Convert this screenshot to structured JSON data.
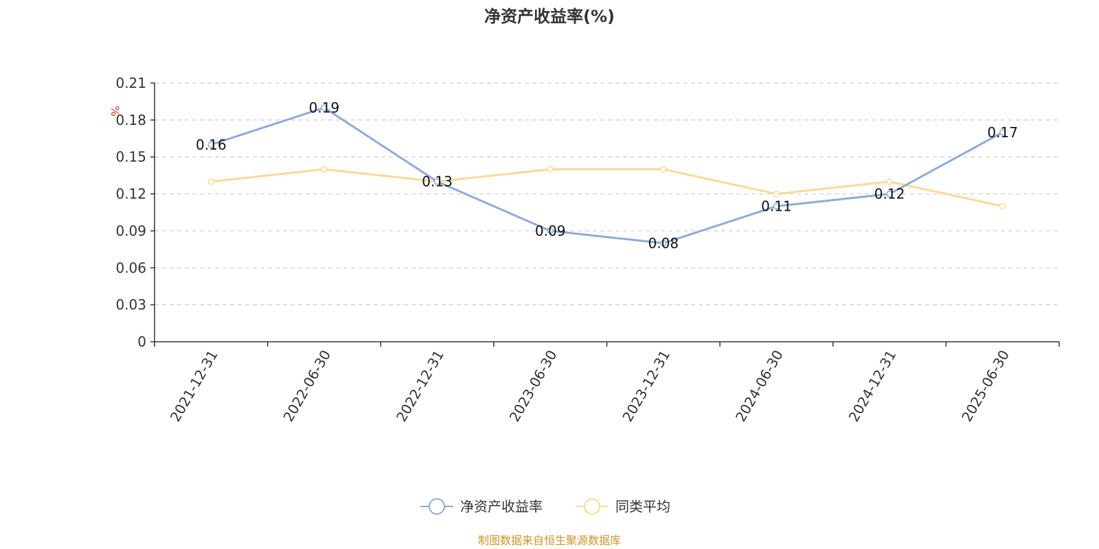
{
  "chart_data": {
    "type": "line",
    "title": "净资产收益率(%)",
    "ylabel": "%",
    "categories": [
      "2021-12-31",
      "2022-06-30",
      "2022-12-31",
      "2023-06-30",
      "2023-12-31",
      "2024-06-30",
      "2024-12-31",
      "2025-06-30"
    ],
    "y_ticks": [
      "0",
      "0.03",
      "0.06",
      "0.09",
      "0.12",
      "0.15",
      "0.18",
      "0.21"
    ],
    "ylim": [
      0,
      0.21
    ],
    "grid": true,
    "legend_position": "bottom-center",
    "series": [
      {
        "name": "净资产收益率",
        "color": "#8eaad8",
        "values": [
          0.16,
          0.19,
          0.13,
          0.09,
          0.08,
          0.11,
          0.12,
          0.17
        ],
        "labels": [
          "0.16",
          "0.19",
          "0.13",
          "0.09",
          "0.08",
          "0.11",
          "0.12",
          "0.17"
        ]
      },
      {
        "name": "同类平均",
        "color": "#fbd995",
        "values": [
          0.13,
          0.14,
          0.13,
          0.14,
          0.14,
          0.12,
          0.13,
          0.11
        ]
      }
    ],
    "source": "制图数据来自恒生聚源数据库"
  }
}
